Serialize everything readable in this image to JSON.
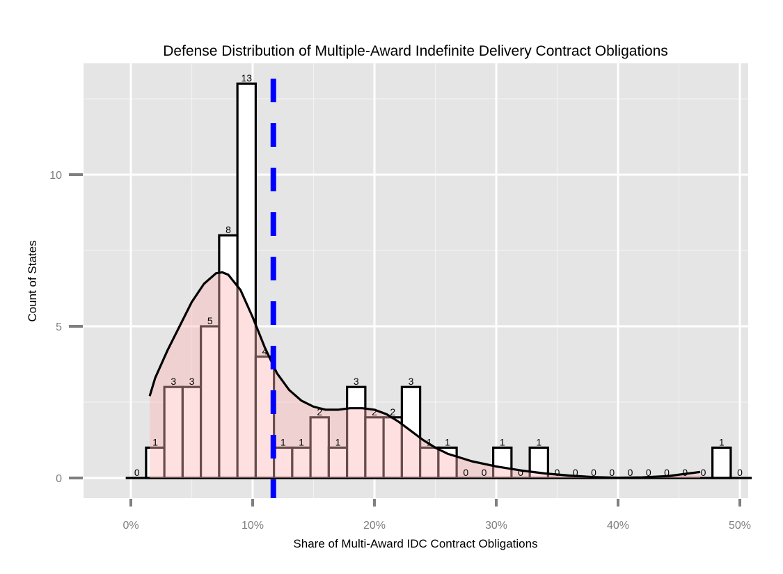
{
  "chart_data": {
    "type": "bar",
    "title": "Defense Distribution of Multiple-Award Indefinite Delivery Contract Obligations",
    "xlabel": "Share of Multi-Award IDC Contract Obligations",
    "ylabel": "Count of States",
    "xlim": [
      -0.04,
      0.505
    ],
    "ylim": [
      -0.65,
      13.7
    ],
    "x_ticks": [
      0,
      0.1,
      0.2,
      0.3,
      0.4,
      0.5
    ],
    "x_tick_labels": [
      "0%",
      "10%",
      "20%",
      "30%",
      "40%",
      "50%"
    ],
    "y_ticks": [
      0,
      5,
      10
    ],
    "y_tick_labels": [
      "0",
      "5",
      "10"
    ],
    "grid": true,
    "bin_width": 0.015,
    "bin_start": -0.0025,
    "counts": [
      0,
      1,
      3,
      3,
      5,
      8,
      13,
      4,
      1,
      1,
      2,
      1,
      3,
      2,
      2,
      3,
      1,
      1,
      0,
      0,
      1,
      0,
      1,
      0,
      0,
      0,
      0,
      0,
      0,
      0,
      0,
      0,
      1,
      0
    ],
    "count_labels": [
      "0",
      "1",
      "3",
      "3",
      "5",
      "8",
      "13",
      "4",
      "1",
      "1",
      "2",
      "1",
      "3",
      "2",
      "2",
      "3",
      "1",
      "1",
      "0",
      "0",
      "1",
      "0",
      "1",
      "0",
      "0",
      "0",
      "0",
      "0",
      "0",
      "0",
      "0",
      "0",
      "1",
      "0"
    ],
    "density_curve": {
      "x": [
        0.0155,
        0.02,
        0.03,
        0.04,
        0.05,
        0.06,
        0.07,
        0.075,
        0.08,
        0.09,
        0.1,
        0.11,
        0.12,
        0.13,
        0.14,
        0.15,
        0.16,
        0.17,
        0.18,
        0.19,
        0.2,
        0.21,
        0.22,
        0.23,
        0.24,
        0.25,
        0.26,
        0.28,
        0.3,
        0.32,
        0.34,
        0.36,
        0.38,
        0.4,
        0.42,
        0.44,
        0.46,
        0.4675
      ],
      "y": [
        2.7,
        3.3,
        4.2,
        5.0,
        5.8,
        6.4,
        6.75,
        6.78,
        6.7,
        6.2,
        5.3,
        4.3,
        3.45,
        2.9,
        2.55,
        2.35,
        2.25,
        2.25,
        2.3,
        2.3,
        2.25,
        2.1,
        1.85,
        1.55,
        1.25,
        1.0,
        0.8,
        0.55,
        0.38,
        0.25,
        0.15,
        0.08,
        0.03,
        0.01,
        0.02,
        0.06,
        0.16,
        0.2
      ]
    },
    "mean_line": {
      "x": 0.117,
      "color": "#0000ff",
      "style": "dashed"
    },
    "colors": {
      "panel": "#e5e5e5",
      "grid_major": "#ffffff",
      "grid_minor": "#f2f2f2",
      "bar_fill": "#ffffff",
      "bar_stroke": "#000000",
      "density_fill": "#ffb6b6",
      "density_stroke": "#000000",
      "tick_mark": "#7f7f7f",
      "tick_text": "#7f7f7f"
    }
  }
}
